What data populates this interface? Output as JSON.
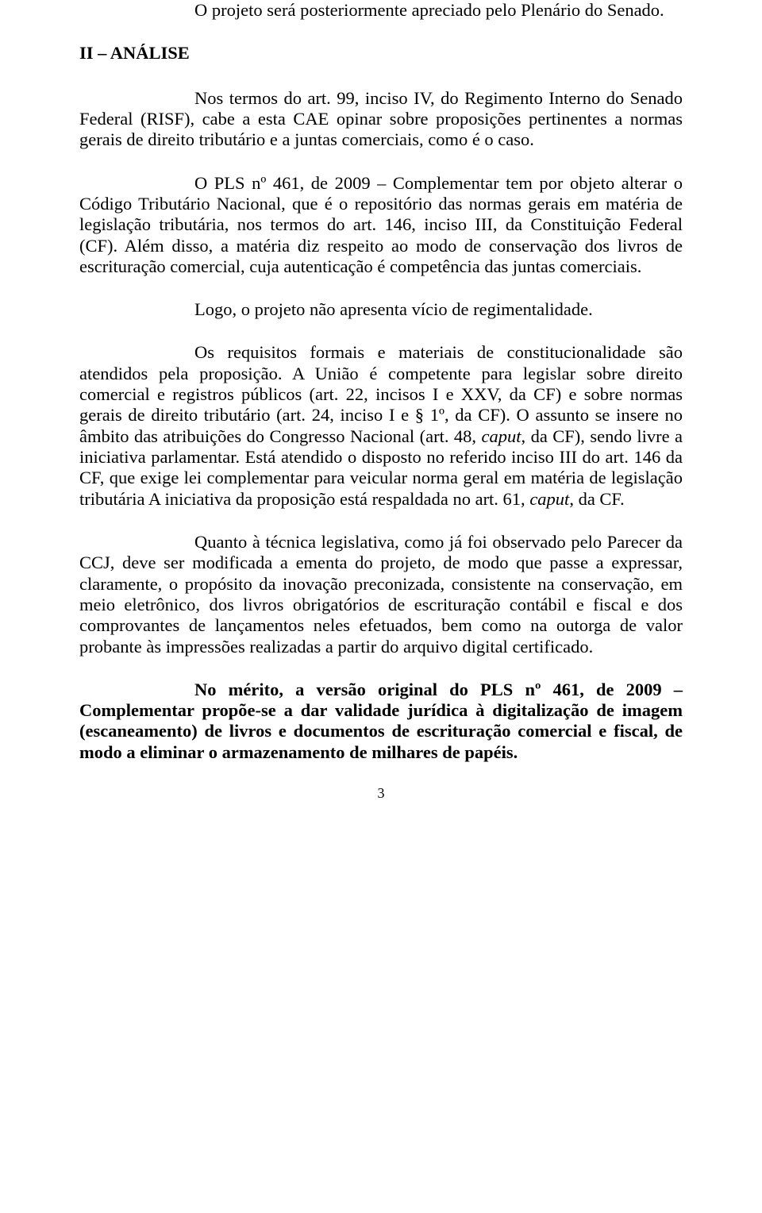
{
  "doc": {
    "p1": "O projeto será posteriormente apreciado pelo Plenário do Senado.",
    "section": "II – ANÁLISE",
    "p2": "Nos termos do art. 99, inciso IV, do Regimento Interno do Senado Federal (RISF), cabe a esta CAE opinar sobre proposições pertinentes a normas gerais de direito tributário e a juntas comerciais, como é o caso.",
    "p3": "O PLS nº 461, de 2009 – Complementar tem por objeto alterar o Código Tributário Nacional, que é o repositório das normas gerais em matéria de legislação tributária, nos termos do art. 146, inciso III, da Constituição Federal (CF). Além disso, a matéria diz respeito ao modo de conservação dos livros de escrituração comercial, cuja autenticação é competência das juntas comerciais.",
    "p4": "Logo, o projeto não apresenta vício de regimentalidade.",
    "p5a": "Os requisitos formais e materiais de constitucionalidade são atendidos pela proposição. A União é competente para legislar sobre direito comercial e registros públicos (art. 22, incisos I e XXV, da CF) e sobre normas gerais de direito tributário (art. 24, inciso I e § 1º, da CF). O assunto se insere no âmbito das atribuições do Congresso Nacional (art. 48, ",
    "p5_caput1": "caput",
    "p5b": ", da CF), sendo livre a iniciativa parlamentar. Está atendido o disposto no referido inciso III do art. 146 da CF, que exige lei complementar para veicular norma geral em matéria de legislação tributária A iniciativa da proposição está respaldada no art. 61, ",
    "p5_caput2": "caput",
    "p5c": ", da CF.",
    "p6": "Quanto à técnica legislativa, como já foi observado pelo Parecer da CCJ, deve ser modificada a ementa do projeto, de modo que passe a expressar, claramente, o propósito da inovação preconizada, consistente na conservação, em meio eletrônico, dos livros obrigatórios de escrituração contábil e fiscal e dos comprovantes de lançamentos neles efetuados, bem como na outorga de valor probante às impressões realizadas a partir do arquivo digital certificado.",
    "p7": "No mérito, a versão original do PLS nº 461, de 2009 – Complementar propõe-se a dar validade jurídica à digitalização de imagem (escaneamento) de livros e documentos de escrituração comercial e fiscal, de modo a eliminar o armazenamento de milhares de papéis.",
    "page_number": "3"
  }
}
